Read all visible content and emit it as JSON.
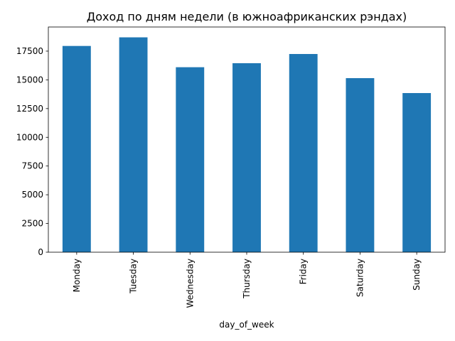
{
  "chart_data": {
    "type": "bar",
    "title": "Доход по дням недели (в южноафриканских рэндах)",
    "xlabel": "day_of_week",
    "ylabel": "",
    "categories": [
      "Monday",
      "Tuesday",
      "Wednesday",
      "Thursday",
      "Friday",
      "Saturday",
      "Sunday"
    ],
    "values": [
      17950,
      18700,
      16100,
      16450,
      17250,
      15150,
      13850
    ],
    "ylim": [
      0,
      19600
    ],
    "yticks": [
      0,
      2500,
      5000,
      7500,
      10000,
      12500,
      15000,
      17500
    ],
    "ytick_labels": [
      "0",
      "2500",
      "5000",
      "7500",
      "10000",
      "12500",
      "15000",
      "17500"
    ],
    "bar_color": "#1f77b4",
    "grid": false,
    "legend": "none"
  }
}
